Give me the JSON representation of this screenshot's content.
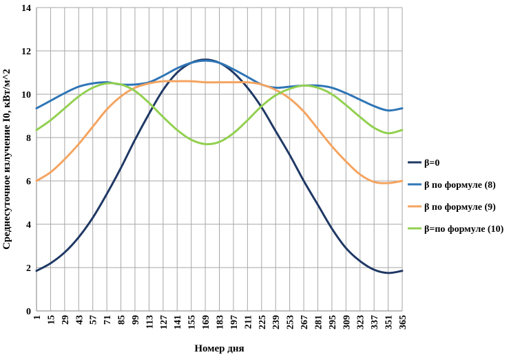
{
  "chart_data": {
    "type": "line",
    "title": "",
    "xlabel": "Номер дня",
    "ylabel": "Среднесуточное излучение I0, кВт/м^2",
    "ylim": [
      0,
      14
    ],
    "yticks": [
      0,
      2,
      4,
      6,
      8,
      10,
      12,
      14
    ],
    "xlim": [
      1,
      365
    ],
    "categories": [
      "1",
      "15",
      "29",
      "43",
      "57",
      "71",
      "85",
      "99",
      "113",
      "127",
      "141",
      "155",
      "169",
      "183",
      "197",
      "211",
      "225",
      "239",
      "253",
      "267",
      "281",
      "295",
      "309",
      "323",
      "337",
      "351",
      "365"
    ],
    "grid": true,
    "legend_position": "right",
    "series": [
      {
        "name": "β=0",
        "color": "#1f3864",
        "values": [
          1.85,
          2.2,
          2.7,
          3.4,
          4.3,
          5.4,
          6.6,
          7.9,
          9.1,
          10.2,
          11.0,
          11.45,
          11.6,
          11.45,
          11.0,
          10.3,
          9.4,
          8.3,
          7.2,
          6.0,
          4.9,
          3.8,
          2.9,
          2.3,
          1.9,
          1.75,
          1.85
        ]
      },
      {
        "name": "β по формуле (8)",
        "color": "#2e75b6",
        "values": [
          9.35,
          9.7,
          10.05,
          10.35,
          10.5,
          10.55,
          10.45,
          10.45,
          10.55,
          10.85,
          11.2,
          11.45,
          11.55,
          11.45,
          11.15,
          10.8,
          10.45,
          10.3,
          10.35,
          10.4,
          10.4,
          10.3,
          10.05,
          9.75,
          9.45,
          9.25,
          9.35
        ]
      },
      {
        "name": "β по формуле (9)",
        "color": "#f4a460",
        "values": [
          6.0,
          6.4,
          7.0,
          7.7,
          8.5,
          9.3,
          9.9,
          10.3,
          10.5,
          10.6,
          10.6,
          10.6,
          10.55,
          10.55,
          10.55,
          10.55,
          10.45,
          10.2,
          9.8,
          9.2,
          8.4,
          7.6,
          6.9,
          6.3,
          5.95,
          5.9,
          6.0
        ]
      },
      {
        "name": "β=по формуле (10)",
        "color": "#92d050",
        "values": [
          8.35,
          8.8,
          9.35,
          9.9,
          10.3,
          10.5,
          10.45,
          10.15,
          9.6,
          8.95,
          8.35,
          7.9,
          7.7,
          7.8,
          8.2,
          8.8,
          9.45,
          9.95,
          10.25,
          10.4,
          10.3,
          10.0,
          9.5,
          8.95,
          8.45,
          8.2,
          8.35
        ]
      }
    ]
  }
}
